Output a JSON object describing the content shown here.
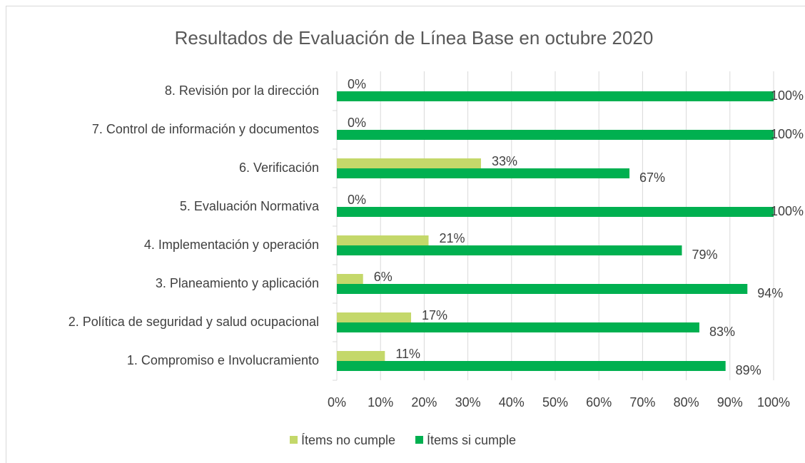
{
  "chart_data": {
    "type": "bar",
    "orientation": "horizontal",
    "title": "Resultados de Evaluación de Línea Base en octubre 2020",
    "categories": [
      "1. Compromiso e Involucramiento",
      "2. Política de seguridad y salud ocupacional",
      "3. Planeamiento y aplicación",
      "4. Implementación y operación",
      "5. Evaluación Normativa",
      "6. Verificación",
      "7. Control de información y documentos",
      "8. Revisión por la dirección"
    ],
    "series": [
      {
        "name": "Ítems no cumple",
        "color": "#c4d86a",
        "values": [
          11,
          17,
          6,
          21,
          0,
          33,
          0,
          0
        ],
        "value_labels": [
          "11%",
          "17%",
          "6%",
          "21%",
          "0%",
          "33%",
          "0%",
          "0%"
        ]
      },
      {
        "name": "Ítems si cumple",
        "color": "#00b050",
        "values": [
          89,
          83,
          94,
          79,
          100,
          67,
          100,
          100
        ],
        "value_labels": [
          "89%",
          "83%",
          "94%",
          "79%",
          "100%",
          "67%",
          "100%",
          "100%"
        ]
      }
    ],
    "xlim": [
      0,
      100
    ],
    "xticks": [
      {
        "value": 0,
        "label": "0%"
      },
      {
        "value": 10,
        "label": "10%"
      },
      {
        "value": 20,
        "label": "20%"
      },
      {
        "value": 30,
        "label": "30%"
      },
      {
        "value": 40,
        "label": "40%"
      },
      {
        "value": 50,
        "label": "50%"
      },
      {
        "value": 60,
        "label": "60%"
      },
      {
        "value": 70,
        "label": "70%"
      },
      {
        "value": 80,
        "label": "80%"
      },
      {
        "value": 90,
        "label": "90%"
      },
      {
        "value": 100,
        "label": "100%"
      }
    ],
    "grid": true,
    "legend": "bottom"
  }
}
